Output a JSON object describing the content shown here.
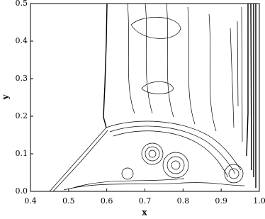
{
  "chart_data": {
    "type": "contour",
    "x_label": "x",
    "y_label": "y",
    "xlim": [
      0.4,
      1.0
    ],
    "ylim": [
      0.0,
      0.5
    ],
    "xticks": [
      0.4,
      0.5,
      0.6,
      0.7,
      0.8,
      0.9,
      {
        "value": 1.0,
        "label": "1.0"
      }
    ],
    "yticks": [
      {
        "value": 0.0,
        "label": "0.0"
      },
      0.1,
      0.2,
      0.3,
      0.4,
      0.5
    ]
  }
}
